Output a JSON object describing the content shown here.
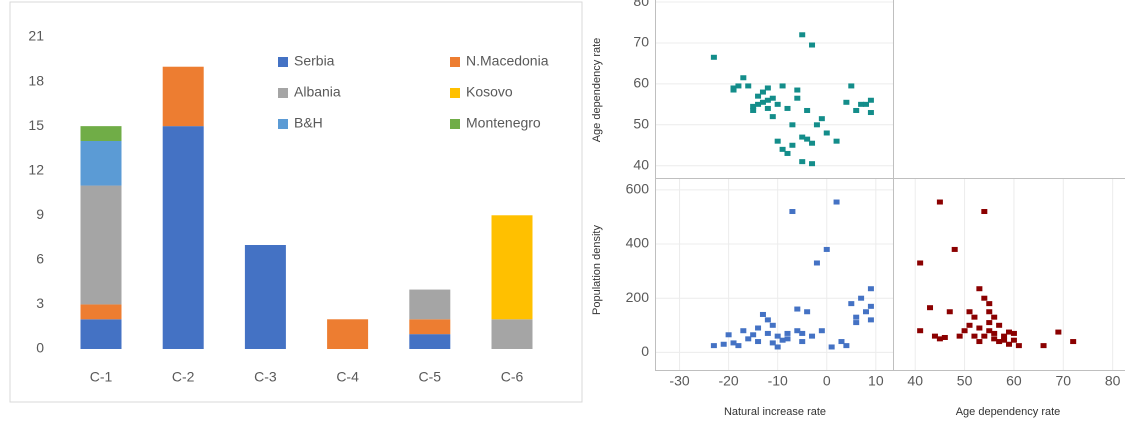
{
  "chart_data": [
    {
      "type": "bar",
      "stacked": true,
      "grid": false,
      "categories": [
        "C-1",
        "C-2",
        "C-3",
        "C-4",
        "C-5",
        "C-6"
      ],
      "ylim": [
        0,
        21
      ],
      "yticks": [
        0,
        3,
        6,
        9,
        12,
        15,
        18,
        21
      ],
      "series": [
        {
          "name": "Serbia",
          "color": "#4472c4",
          "values": [
            2,
            15,
            7,
            0,
            1,
            0
          ]
        },
        {
          "name": "N.Macedonia",
          "color": "#ed7d31",
          "values": [
            1,
            4,
            0,
            2,
            1,
            0
          ]
        },
        {
          "name": "Albania",
          "color": "#a5a5a5",
          "values": [
            8,
            0,
            0,
            0,
            2,
            2
          ]
        },
        {
          "name": "Kosovo",
          "color": "#ffc000",
          "values": [
            0,
            0,
            0,
            0,
            0,
            7
          ]
        },
        {
          "name": "B&H",
          "color": "#5b9bd5",
          "values": [
            3,
            0,
            0,
            0,
            0,
            0
          ]
        },
        {
          "name": "Montenegro",
          "color": "#70ad47",
          "values": [
            1,
            0,
            0,
            0,
            0,
            0
          ]
        }
      ]
    },
    {
      "type": "scatter",
      "color": "#138d8a",
      "y_label": "Age dependency rate",
      "xlim": [
        -35,
        13.5
      ],
      "ylim": [
        37,
        80.5
      ],
      "yticks": [
        40,
        50,
        60,
        70,
        80
      ],
      "x": [
        -23,
        -19,
        -18,
        -17,
        -16,
        -15,
        -14,
        -14,
        -13,
        -13,
        -12,
        -12,
        -12,
        -11,
        -11,
        -10,
        -10,
        -9,
        -9,
        -8,
        -8,
        -7,
        -7,
        -6,
        -6,
        -5,
        -5,
        -5,
        -4,
        -4,
        -3,
        -3,
        -3,
        -2,
        -1,
        0,
        2,
        4,
        5,
        6,
        7,
        8,
        9,
        9,
        -15,
        -19
      ],
      "values": [
        66.5,
        59,
        59.5,
        61.5,
        59.5,
        53.5,
        55,
        57,
        55.5,
        58,
        54,
        56,
        59,
        52,
        56.5,
        55,
        46,
        44,
        59.5,
        43,
        54,
        45,
        50,
        56.5,
        58.5,
        41,
        47,
        72,
        46.5,
        53.5,
        40.5,
        45.5,
        69.5,
        50,
        51.5,
        48,
        46,
        55.5,
        59.5,
        53.5,
        55,
        55,
        53,
        56,
        54.5,
        58.5
      ]
    },
    {
      "type": "scatter",
      "color": "#4472c4",
      "y_label": "Population density",
      "x_label": "Natural increase rate",
      "xlim": [
        -35,
        13.5
      ],
      "ylim": [
        -65,
        640
      ],
      "yticks": [
        0,
        200,
        400,
        600
      ],
      "xticks": [
        -30,
        -20,
        -10,
        0,
        10
      ],
      "x": [
        -23,
        -20,
        -19,
        -18,
        -17,
        -16,
        -15,
        -14,
        -13,
        -12,
        -12,
        -11,
        -11,
        -10,
        -10,
        -9,
        -8,
        -8,
        -7,
        -6,
        -5,
        -5,
        -4,
        -3,
        -2,
        -1,
        0,
        1,
        2,
        3,
        4,
        5,
        6,
        6,
        7,
        8,
        9,
        9,
        9,
        -21,
        -14,
        -6
      ],
      "values": [
        25,
        65,
        35,
        25,
        80,
        50,
        65,
        40,
        140,
        120,
        70,
        100,
        35,
        60,
        20,
        45,
        50,
        70,
        520,
        160,
        70,
        40,
        150,
        60,
        330,
        80,
        380,
        20,
        555,
        40,
        25,
        180,
        130,
        110,
        200,
        150,
        235,
        170,
        120,
        30,
        90,
        80
      ]
    },
    {
      "type": "scatter",
      "color": "#8b0000",
      "x_label": "Age dependency rate",
      "xlim": [
        35.5,
        82.5
      ],
      "ylim": [
        -65,
        640
      ],
      "xticks": [
        40,
        50,
        60,
        70,
        80
      ],
      "x": [
        41,
        41,
        43,
        44,
        45,
        45,
        46,
        47,
        48,
        49,
        50,
        51,
        51,
        52,
        53,
        53,
        54,
        54,
        55,
        55,
        55,
        55,
        56,
        56,
        57,
        58,
        59,
        59,
        60,
        61,
        66,
        69,
        72,
        54,
        52,
        57,
        60,
        58,
        53,
        56
      ],
      "values": [
        330,
        80,
        165,
        60,
        50,
        555,
        55,
        150,
        380,
        60,
        80,
        150,
        100,
        60,
        235,
        40,
        520,
        200,
        180,
        150,
        110,
        80,
        70,
        50,
        40,
        60,
        75,
        30,
        45,
        25,
        25,
        75,
        40,
        60,
        130,
        100,
        70,
        45,
        90,
        130
      ]
    }
  ]
}
